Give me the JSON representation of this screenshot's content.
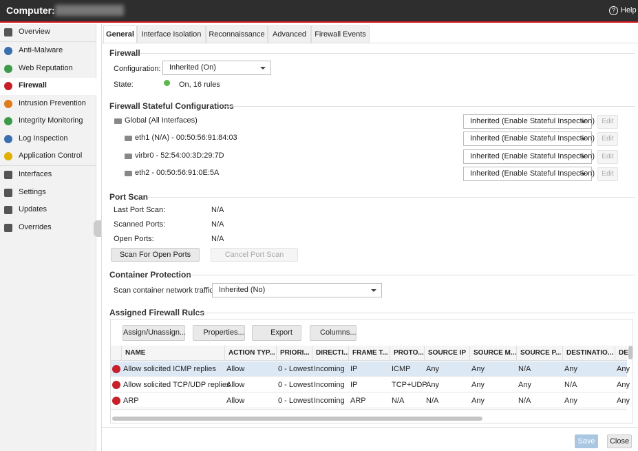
{
  "header": {
    "title": "Computer:",
    "help": "Help"
  },
  "sidebar": {
    "items": [
      "Overview",
      "Anti-Malware",
      "Web Reputation",
      "Firewall",
      "Intrusion Prevention",
      "Integrity Monitoring",
      "Log Inspection",
      "Application Control",
      "Interfaces",
      "Settings",
      "Updates",
      "Overrides"
    ]
  },
  "tabs": [
    "General",
    "Interface Isolation",
    "Reconnaissance",
    "Advanced",
    "Firewall Events"
  ],
  "firewall": {
    "title": "Firewall",
    "config_label": "Configuration:",
    "config_value": "Inherited (On)",
    "state_label": "State:",
    "state_value": "On, 16 rules"
  },
  "stateful": {
    "title": "Firewall Stateful Configurations",
    "rows": [
      {
        "label": "Global (All Interfaces)",
        "value": "Inherited (Enable Stateful Inspection)",
        "button": "Edit"
      },
      {
        "label": "eth1 (N/A) - 00:50:56:91:84:03",
        "value": "Inherited (Enable Stateful Inspection)",
        "button": "Edit"
      },
      {
        "label": "virbr0 - 52:54:00:3D:29:7D",
        "value": "Inherited (Enable Stateful Inspection)",
        "button": "Edit"
      },
      {
        "label": "eth2 - 00:50:56:91:0E:5A",
        "value": "Inherited (Enable Stateful Inspection)",
        "button": "Edit"
      }
    ]
  },
  "port_scan": {
    "title": "Port Scan",
    "rows": [
      [
        "Last Port Scan:",
        "N/A"
      ],
      [
        "Scanned Ports:",
        "N/A"
      ],
      [
        "Open Ports:",
        "N/A"
      ]
    ],
    "scan_button": "Scan For Open Ports",
    "cancel_button": "Cancel Port Scan"
  },
  "container": {
    "title": "Container Protection",
    "label": "Scan container network traffic:",
    "value": "Inherited (No)"
  },
  "rules": {
    "title": "Assigned Firewall Rules",
    "toolbar": [
      "Assign/Unassign...",
      "Properties...",
      "Export",
      "Columns..."
    ],
    "columns": [
      "NAME",
      "ACTION TYP...",
      "PRIORI...",
      "DIRECTI...",
      "FRAME T...",
      "PROTO...",
      "SOURCE IP",
      "SOURCE M...",
      "SOURCE P...",
      "DESTINATIO...",
      "DE"
    ],
    "rows": [
      [
        "Allow solicited ICMP replies",
        "Allow",
        "0 - Lowest",
        "Incoming",
        "IP",
        "ICMP",
        "Any",
        "Any",
        "N/A",
        "Any",
        "Any"
      ],
      [
        "Allow solicited TCP/UDP replies",
        "Allow",
        "0 - Lowest",
        "Incoming",
        "IP",
        "TCP+UDP",
        "Any",
        "Any",
        "Any",
        "N/A",
        "Any"
      ],
      [
        "ARP",
        "Allow",
        "0 - Lowest",
        "Incoming",
        "ARP",
        "N/A",
        "N/A",
        "Any",
        "N/A",
        "Any",
        "Any"
      ]
    ]
  },
  "footer": {
    "save": "Save",
    "close": "Close"
  }
}
